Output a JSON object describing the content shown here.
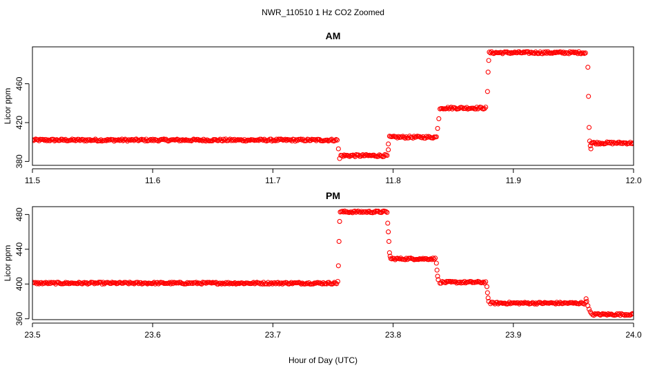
{
  "figure": {
    "title": "NWR_110510  1 Hz CO2 Zoomed",
    "xlabel": "Hour of Day (UTC)"
  },
  "chart_data": [
    {
      "type": "scatter",
      "title": "AM",
      "xlabel": "Hour of Day (UTC)",
      "ylabel": "Licor ppm",
      "xlim": [
        11.5,
        12.0
      ],
      "ylim": [
        376,
        498
      ],
      "xticks": [
        11.5,
        11.6,
        11.7,
        11.8,
        11.9,
        12.0
      ],
      "xtick_labels": [
        "11.5",
        "11.6",
        "11.7",
        "11.8",
        "11.9",
        "12.0"
      ],
      "yticks": [
        380,
        420,
        460
      ],
      "ytick_labels": [
        "380",
        "420",
        "460"
      ],
      "marker_color": "#ff0000",
      "segments": [
        {
          "x0": 11.5,
          "x1": 11.7535,
          "y": 402
        },
        {
          "x0": 11.7565,
          "x1": 11.795,
          "y": 386
        },
        {
          "x0": 11.797,
          "x1": 11.836,
          "y": 405
        },
        {
          "x0": 11.839,
          "x1": 11.877,
          "y": 435
        },
        {
          "x0": 11.88,
          "x1": 11.96,
          "y": 492
        },
        {
          "x0": 11.965,
          "x1": 12.0,
          "y": 399
        }
      ],
      "transitions": [
        {
          "x": 11.7545,
          "y": 393
        },
        {
          "x": 11.7555,
          "y": 383
        },
        {
          "x": 11.796,
          "y": 392
        },
        {
          "x": 11.796,
          "y": 398
        },
        {
          "x": 11.837,
          "y": 414
        },
        {
          "x": 11.838,
          "y": 424
        },
        {
          "x": 11.8785,
          "y": 452
        },
        {
          "x": 11.879,
          "y": 472
        },
        {
          "x": 11.8795,
          "y": 484
        },
        {
          "x": 11.962,
          "y": 477
        },
        {
          "x": 11.9625,
          "y": 447
        },
        {
          "x": 11.963,
          "y": 415
        },
        {
          "x": 11.9635,
          "y": 401
        },
        {
          "x": 11.964,
          "y": 396
        },
        {
          "x": 11.9645,
          "y": 393
        }
      ]
    },
    {
      "type": "scatter",
      "title": "PM",
      "xlabel": "Hour of Day (UTC)",
      "ylabel": "Licor ppm",
      "xlim": [
        23.5,
        24.0
      ],
      "ylim": [
        359,
        489
      ],
      "xticks": [
        23.5,
        23.6,
        23.7,
        23.8,
        23.9,
        24.0
      ],
      "xtick_labels": [
        "23.5",
        "23.6",
        "23.7",
        "23.8",
        "23.9",
        "24.0"
      ],
      "yticks": [
        360,
        400,
        440,
        480
      ],
      "ytick_labels": [
        "360",
        "400",
        "440",
        "480"
      ],
      "marker_color": "#ff0000",
      "segments": [
        {
          "x0": 23.5,
          "x1": 23.753,
          "y": 401
        },
        {
          "x0": 23.756,
          "x1": 23.795,
          "y": 483
        },
        {
          "x0": 23.798,
          "x1": 23.835,
          "y": 429
        },
        {
          "x0": 23.839,
          "x1": 23.877,
          "y": 402
        },
        {
          "x0": 23.881,
          "x1": 23.96,
          "y": 378
        },
        {
          "x0": 23.966,
          "x1": 24.0,
          "y": 365
        }
      ],
      "transitions": [
        {
          "x": 23.754,
          "y": 403
        },
        {
          "x": 23.7545,
          "y": 421
        },
        {
          "x": 23.755,
          "y": 449
        },
        {
          "x": 23.7555,
          "y": 472
        },
        {
          "x": 23.7955,
          "y": 470
        },
        {
          "x": 23.796,
          "y": 460
        },
        {
          "x": 23.7965,
          "y": 449
        },
        {
          "x": 23.797,
          "y": 436
        },
        {
          "x": 23.7975,
          "y": 432
        },
        {
          "x": 23.836,
          "y": 424
        },
        {
          "x": 23.8365,
          "y": 416
        },
        {
          "x": 23.837,
          "y": 409
        },
        {
          "x": 23.8375,
          "y": 405
        },
        {
          "x": 23.878,
          "y": 397
        },
        {
          "x": 23.8785,
          "y": 390
        },
        {
          "x": 23.879,
          "y": 384
        },
        {
          "x": 23.8795,
          "y": 380
        },
        {
          "x": 23.9605,
          "y": 383
        },
        {
          "x": 23.961,
          "y": 380
        },
        {
          "x": 23.962,
          "y": 375
        },
        {
          "x": 23.963,
          "y": 371
        },
        {
          "x": 23.964,
          "y": 368
        },
        {
          "x": 23.965,
          "y": 366
        }
      ]
    }
  ]
}
